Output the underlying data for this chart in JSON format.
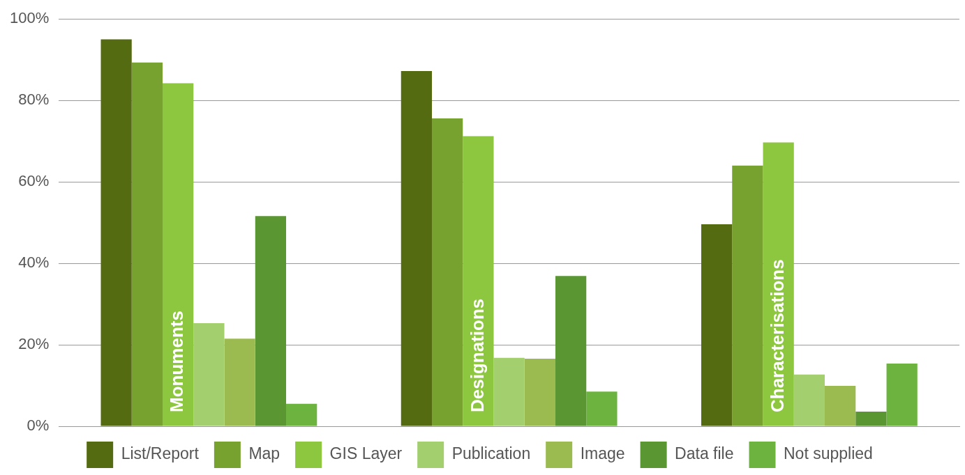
{
  "chart_data": {
    "type": "bar",
    "categories": [
      "Monuments",
      "Designations",
      "Characterisations"
    ],
    "series": [
      {
        "name": "List/Report",
        "color": "#556b12",
        "values": [
          95.0,
          87.2,
          49.6
        ]
      },
      {
        "name": "Map",
        "color": "#77a22f",
        "values": [
          89.3,
          75.6,
          64.0
        ]
      },
      {
        "name": "GIS Layer",
        "color": "#8dc63f",
        "values": [
          84.2,
          71.2,
          69.7
        ]
      },
      {
        "name": "Publication",
        "color": "#a3cf6e",
        "values": [
          25.3,
          16.8,
          12.7
        ]
      },
      {
        "name": "Image",
        "color": "#9bbb50",
        "values": [
          21.5,
          16.6,
          9.9
        ]
      },
      {
        "name": "Data file",
        "color": "#5a9632",
        "values": [
          51.6,
          36.9,
          3.6
        ]
      },
      {
        "name": "Not supplied",
        "color": "#6db33f",
        "values": [
          5.5,
          8.5,
          15.4
        ]
      }
    ],
    "ylim": [
      0,
      100
    ],
    "yticks": [
      {
        "value": 0,
        "label": "0%"
      },
      {
        "value": 20,
        "label": "20%"
      },
      {
        "value": 40,
        "label": "40%"
      },
      {
        "value": 60,
        "label": "60%"
      },
      {
        "value": 80,
        "label": "80%"
      },
      {
        "value": 100,
        "label": "100%"
      }
    ],
    "grid": "y",
    "legend": "bottom"
  }
}
